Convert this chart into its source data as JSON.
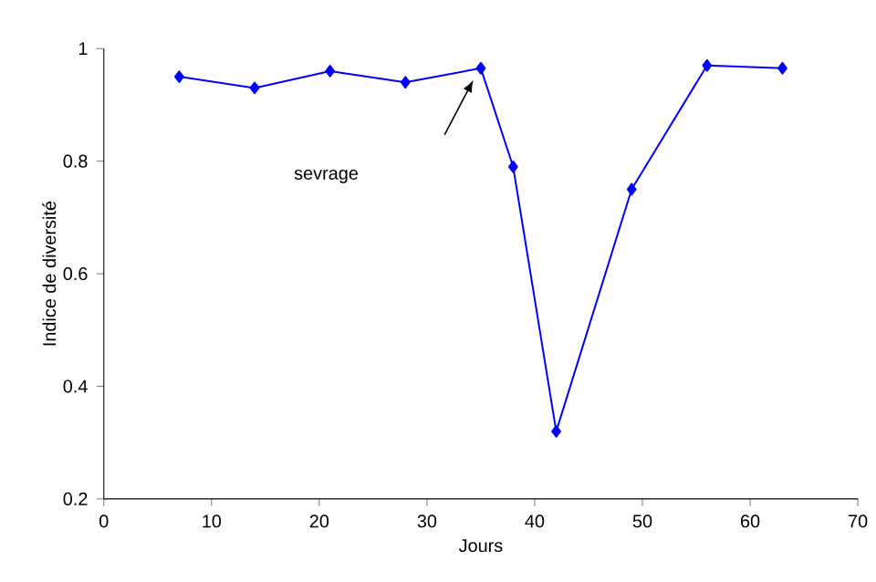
{
  "chart_data": {
    "type": "line",
    "xlabel": "Jours",
    "ylabel": "Indice de diversité",
    "x": [
      7,
      14,
      21,
      28,
      35,
      38,
      42,
      49,
      56,
      63
    ],
    "series": [
      {
        "color": "#0000ff",
        "values": [
          0.95,
          0.93,
          0.96,
          0.94,
          0.965,
          0.79,
          0.32,
          0.75,
          0.97,
          0.965
        ]
      }
    ],
    "xlim": [
      0,
      70
    ],
    "xticks": [
      0,
      10,
      20,
      30,
      40,
      50,
      60,
      70
    ],
    "ylim": [
      0.2,
      1
    ],
    "yticks": [
      0.2,
      0.4,
      0.6,
      0.8,
      1
    ],
    "annotations": [
      "sevrage"
    ],
    "grid": false,
    "marker": "diamond",
    "line_style": "solid"
  }
}
